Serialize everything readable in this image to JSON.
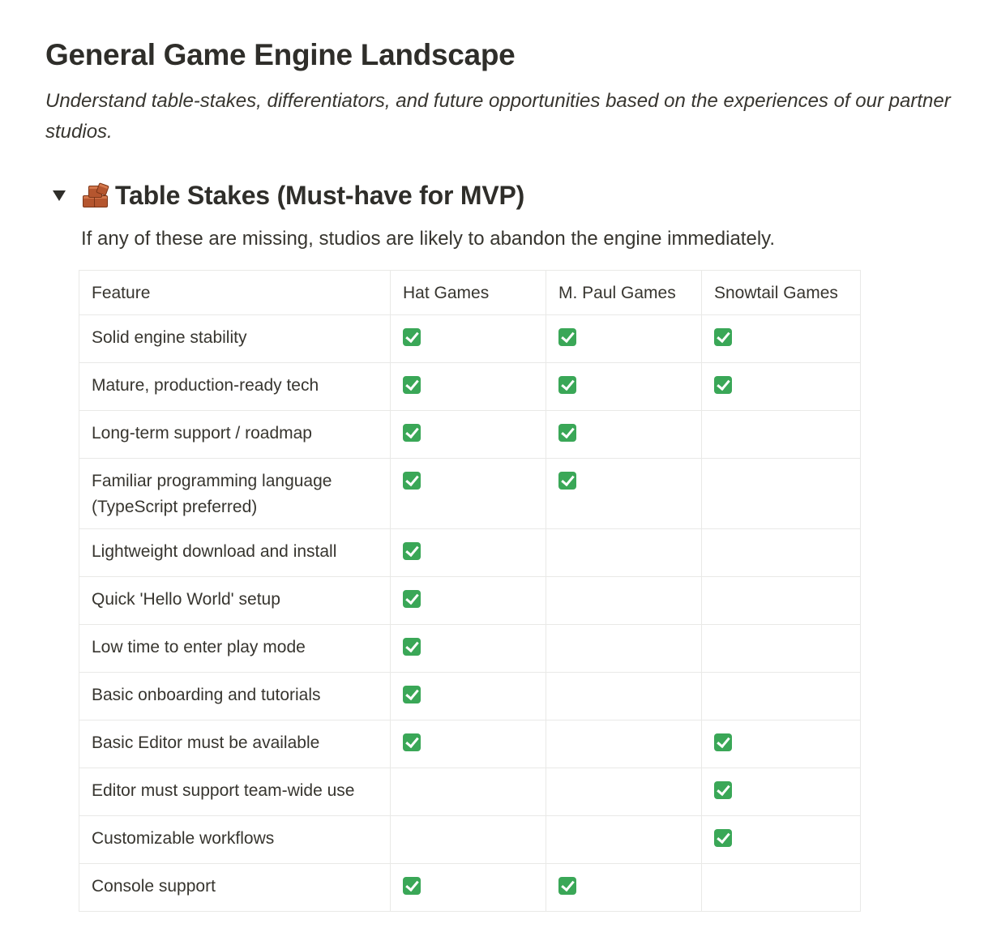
{
  "page": {
    "title": "General Game Engine Landscape",
    "subtitle": "Understand table-stakes, differentiators, and future opportunities based on the experiences of our partner studios."
  },
  "section": {
    "icon": "bricks-icon",
    "heading": "Table Stakes (Must-have for MVP)",
    "description": "If any of these are missing, studios are likely to abandon the engine immediately.",
    "expanded": true
  },
  "table": {
    "columns": [
      "Feature",
      "Hat Games",
      "M. Paul Games",
      "Snowtail Games"
    ],
    "rows": [
      {
        "feature": "Solid engine stability",
        "checks": [
          true,
          true,
          true
        ]
      },
      {
        "feature": "Mature, production-ready tech",
        "checks": [
          true,
          true,
          true
        ]
      },
      {
        "feature": "Long-term support / roadmap",
        "checks": [
          true,
          true,
          false
        ]
      },
      {
        "feature": "Familiar programming language (TypeScript preferred)",
        "checks": [
          true,
          true,
          false
        ]
      },
      {
        "feature": "Lightweight download and install",
        "checks": [
          true,
          false,
          false
        ]
      },
      {
        "feature": "Quick 'Hello World' setup",
        "checks": [
          true,
          false,
          false
        ]
      },
      {
        "feature": "Low time to enter play mode",
        "checks": [
          true,
          false,
          false
        ]
      },
      {
        "feature": "Basic onboarding and tutorials",
        "checks": [
          true,
          false,
          false
        ]
      },
      {
        "feature": "Basic Editor must be available",
        "checks": [
          true,
          false,
          true
        ]
      },
      {
        "feature": "Editor must support team-wide use",
        "checks": [
          false,
          false,
          true
        ]
      },
      {
        "feature": "Customizable workflows",
        "checks": [
          false,
          false,
          true
        ]
      },
      {
        "feature": "Console support",
        "checks": [
          true,
          true,
          false
        ]
      }
    ]
  },
  "colors": {
    "text": "#37352f",
    "border": "#e9e9e7",
    "check_green": "#3aa757"
  }
}
